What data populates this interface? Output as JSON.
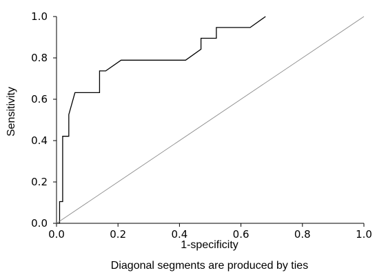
{
  "chart_data": {
    "type": "line",
    "title": "",
    "xlabel": "1-specificity",
    "ylabel": "Sensitivity",
    "footnote": "Diagonal segments are produced by ties",
    "xlim": [
      0,
      1
    ],
    "ylim": [
      0,
      1
    ],
    "x_ticks": [
      "0.0",
      "0.2",
      "0.4",
      "0.6",
      "0.8",
      "1.0"
    ],
    "y_ticks": [
      "0.0",
      "0.2",
      "0.4",
      "0.6",
      "0.8",
      "1.0"
    ],
    "grid": false,
    "legend": "none",
    "series": [
      {
        "x": [
          0.0,
          0.01,
          0.01,
          0.02,
          0.02,
          0.04,
          0.04,
          0.06,
          0.14,
          0.14,
          0.16,
          0.21,
          0.42,
          0.47,
          0.47,
          0.52,
          0.52,
          0.63,
          0.68
        ],
        "y": [
          0.0,
          0.0,
          0.105,
          0.105,
          0.421,
          0.421,
          0.526,
          0.632,
          0.632,
          0.737,
          0.737,
          0.789,
          0.789,
          0.842,
          0.895,
          0.895,
          0.947,
          0.947,
          1.0
        ],
        "color": "#000000"
      },
      {
        "x": [
          0,
          1
        ],
        "y": [
          0,
          1
        ],
        "color": "#8a8a8a"
      }
    ]
  }
}
